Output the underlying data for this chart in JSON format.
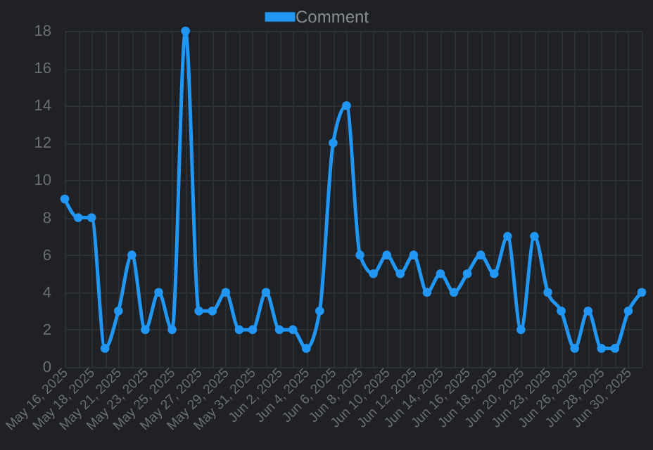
{
  "chart_data": {
    "type": "line",
    "categories": [
      "May 16, 2025",
      null,
      "May 18, 2025",
      null,
      "May 21, 2025",
      null,
      "May 23, 2025",
      null,
      "May 25, 2025",
      null,
      "May 27, 2025",
      null,
      "May 29, 2025",
      null,
      "May 31, 2025",
      null,
      "Jun 2, 2025",
      null,
      "Jun 4, 2025",
      null,
      "Jun 6, 2025",
      null,
      "Jun 8, 2025",
      null,
      "Jun 10, 2025",
      null,
      "Jun 12, 2025",
      null,
      "Jun 14, 2025",
      null,
      "Jun 16, 2025",
      null,
      "Jun 18, 2025",
      null,
      "Jun 20, 2025",
      null,
      "Jun 23, 2025",
      null,
      "Jun 26, 2025",
      null,
      "Jun 28, 2025",
      null,
      "Jun 30, 2025",
      null
    ],
    "series": [
      {
        "name": "Comment",
        "color": "#2196f3",
        "values": [
          9,
          8,
          8,
          1,
          3,
          6,
          2,
          4,
          2,
          18,
          3,
          3,
          4,
          2,
          2,
          4,
          2,
          2,
          1,
          3,
          12,
          14,
          6,
          5,
          6,
          5,
          6,
          4,
          5,
          4,
          5,
          6,
          5,
          7,
          2,
          7,
          4,
          3,
          1,
          3,
          1,
          1,
          3,
          4
        ]
      }
    ],
    "ylim": [
      0,
      18
    ],
    "yticks": [
      0,
      2,
      4,
      6,
      8,
      10,
      12,
      14,
      16,
      18
    ],
    "grid": true,
    "legend": "top",
    "marker": "circle",
    "line_style": "solid"
  }
}
